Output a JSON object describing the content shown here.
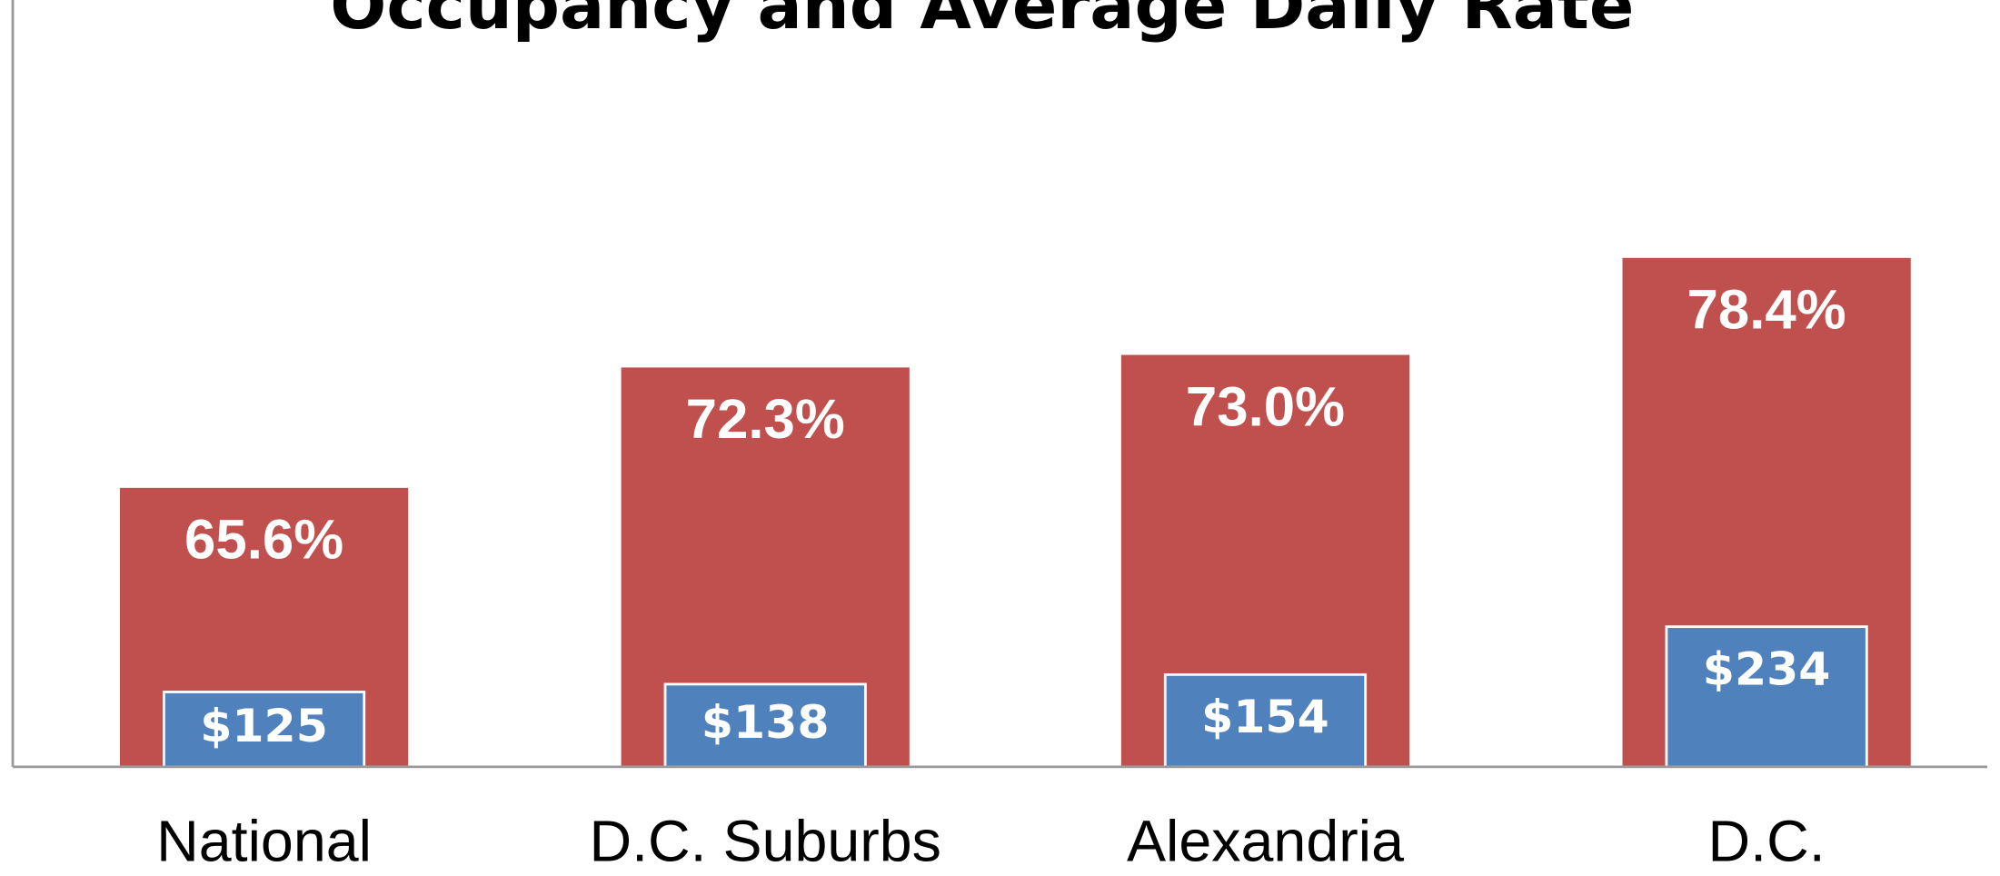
{
  "chart_data": {
    "type": "bar",
    "title": "Occupancy and Average Daily Rate",
    "categories": [
      "National",
      "D.C. Suburbs",
      "Alexandria",
      "D.C."
    ],
    "series": [
      {
        "name": "Occupancy",
        "color": "#c0504d",
        "values": [
          65.6,
          72.3,
          73.0,
          78.4
        ],
        "value_labels": [
          "65.6%",
          "72.3%",
          "73.0%",
          "78.4%"
        ]
      },
      {
        "name": "Average Daily Rate",
        "color": "#4f81bd",
        "axis": "y2",
        "values": [
          125,
          138,
          154,
          234
        ],
        "value_labels": [
          "$125",
          "$138",
          "$154",
          "$234"
        ]
      }
    ],
    "ylim": [
      50,
      90
    ],
    "y2lim": [
      0,
      1200
    ]
  }
}
